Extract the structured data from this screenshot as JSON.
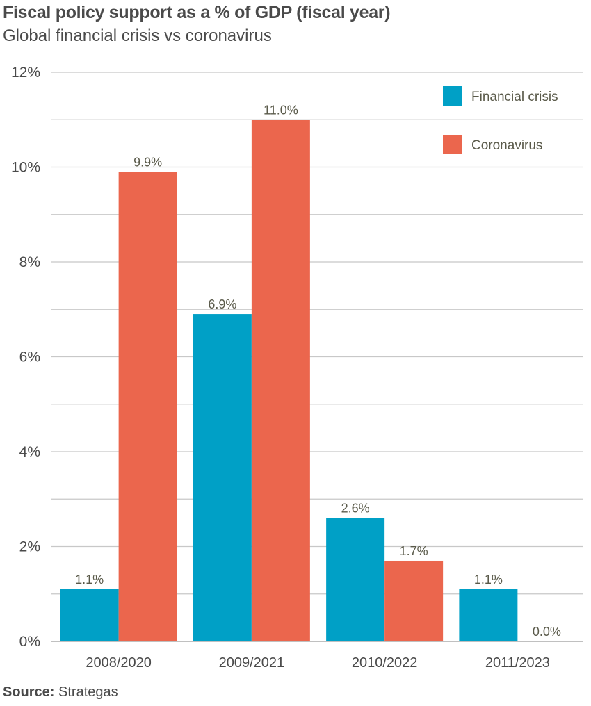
{
  "title": "Fiscal policy support as a % of GDP (fiscal year)",
  "subtitle": "Global financial crisis vs coronavirus",
  "source": {
    "label": "Source:",
    "value": "Strategas"
  },
  "colors": {
    "financial": "#00a0c6",
    "corona": "#eb664d",
    "grid": "#c8c8c8",
    "text": "#4a4a4a",
    "label": "#5a5a4a"
  },
  "chart_data": {
    "type": "bar",
    "categories": [
      "2008/2020",
      "2009/2021",
      "2010/2022",
      "2011/2023"
    ],
    "series": [
      {
        "name": "Financial crisis",
        "values": [
          1.1,
          6.9,
          2.6,
          1.1
        ],
        "labels": [
          "1.1%",
          "6.9%",
          "2.6%",
          "1.1%"
        ]
      },
      {
        "name": "Coronavirus",
        "values": [
          9.9,
          11.0,
          1.7,
          0.0
        ],
        "labels": [
          "9.9%",
          "11.0%",
          "1.7%",
          "0.0%"
        ]
      }
    ],
    "ylim": [
      0,
      12
    ],
    "yticks": [
      0,
      2,
      4,
      6,
      8,
      10,
      12
    ],
    "ytick_labels": [
      "0%",
      "2%",
      "4%",
      "6%",
      "8%",
      "10%",
      "12%"
    ],
    "grid": true,
    "legend": "top-right"
  }
}
